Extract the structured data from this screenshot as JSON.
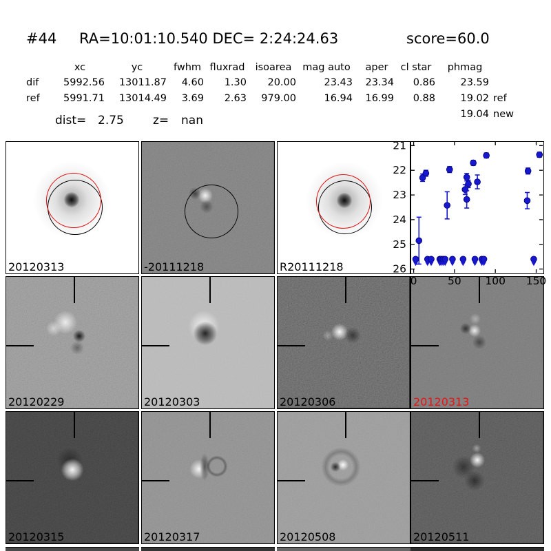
{
  "colors": {
    "highlight_date": "#ee1111",
    "marker": "#1717cf",
    "text": "#000000"
  },
  "header": {
    "id": "#44",
    "radec": "RA=10:01:10.540 DEC= 2:24:24.63",
    "score": "score=60.0"
  },
  "photometry": {
    "columns": [
      "xc",
      "yc",
      "fwhm",
      "fluxrad",
      "isoarea",
      "mag auto",
      "aper",
      "cl star",
      "phmag"
    ],
    "rows": [
      {
        "label": "dif",
        "xc": "5992.56",
        "yc": "13011.87",
        "fwhm": "4.60",
        "fluxrad": "1.30",
        "isoarea": "20.00",
        "magauto": "23.43",
        "aper": "23.34",
        "clstar": "0.86",
        "phmag": "23.59",
        "suffix": ""
      },
      {
        "label": "ref",
        "xc": "5991.71",
        "yc": "13014.49",
        "fwhm": "3.69",
        "fluxrad": "2.63",
        "isoarea": "979.00",
        "magauto": "16.94",
        "aper": "16.99",
        "clstar": "0.88",
        "phmag": "19.02",
        "suffix": "ref"
      }
    ],
    "extra": {
      "phmag": "19.04",
      "suffix": "new"
    },
    "dist_label": "dist=",
    "dist_value": "2.75",
    "z_label": "z=",
    "z_value": "nan"
  },
  "cutouts": {
    "row1": [
      {
        "label": "20120313"
      },
      {
        "label": "-20111218"
      },
      {
        "label": "R20111218"
      }
    ],
    "row2": [
      {
        "label": "20120229"
      },
      {
        "label": "20120303"
      },
      {
        "label": "20120306"
      },
      {
        "label": "20120313",
        "highlight": true
      }
    ],
    "row3": [
      {
        "label": "20120315"
      },
      {
        "label": "20120317"
      },
      {
        "label": "20120508"
      },
      {
        "label": "20120511"
      }
    ]
  },
  "chart_data": {
    "type": "scatter",
    "title": "",
    "xlabel": "",
    "ylabel": "",
    "legend": null,
    "grid": false,
    "y_axis_inverted": true,
    "xlim": [
      -3,
      158
    ],
    "ylim_top": 20.85,
    "ylim_bottom": 26.15,
    "xticks": [
      0,
      50,
      100,
      150
    ],
    "yticks": [
      21,
      22,
      23,
      24,
      25,
      26
    ],
    "series": [
      {
        "name": "magnitude",
        "marker": "circle",
        "color": "#1717cf",
        "points": [
          {
            "x": 6.5,
            "mag": 24.85,
            "err": 0.95
          },
          {
            "x": 11,
            "mag": 22.3,
            "err": 0.15
          },
          {
            "x": 15,
            "mag": 22.12,
            "err": 0.12
          },
          {
            "x": 41,
            "mag": 23.42,
            "err": 0.55
          },
          {
            "x": 44,
            "mag": 21.97,
            "err": 0.12
          },
          {
            "x": 63,
            "mag": 22.78,
            "err": 0.2
          },
          {
            "x": 65,
            "mag": 22.28,
            "err": 0.15
          },
          {
            "x": 65,
            "mag": 23.18,
            "err": 0.35
          },
          {
            "x": 67,
            "mag": 22.55,
            "err": 0.15
          },
          {
            "x": 73,
            "mag": 21.7,
            "err": 0.1
          },
          {
            "x": 78,
            "mag": 22.47,
            "err": 0.28
          },
          {
            "x": 89,
            "mag": 21.4,
            "err": 0.1
          },
          {
            "x": 139,
            "mag": 23.23,
            "err": 0.33
          },
          {
            "x": 140,
            "mag": 22.03,
            "err": 0.12
          },
          {
            "x": 154,
            "mag": 21.37,
            "err": 0.1
          }
        ]
      }
    ],
    "upper_limits": {
      "mag": 25.6,
      "x": [
        2.5,
        17,
        21.5,
        32,
        33.5,
        36,
        38.5,
        47.5,
        60.5,
        75,
        83.5,
        86,
        147
      ]
    }
  }
}
